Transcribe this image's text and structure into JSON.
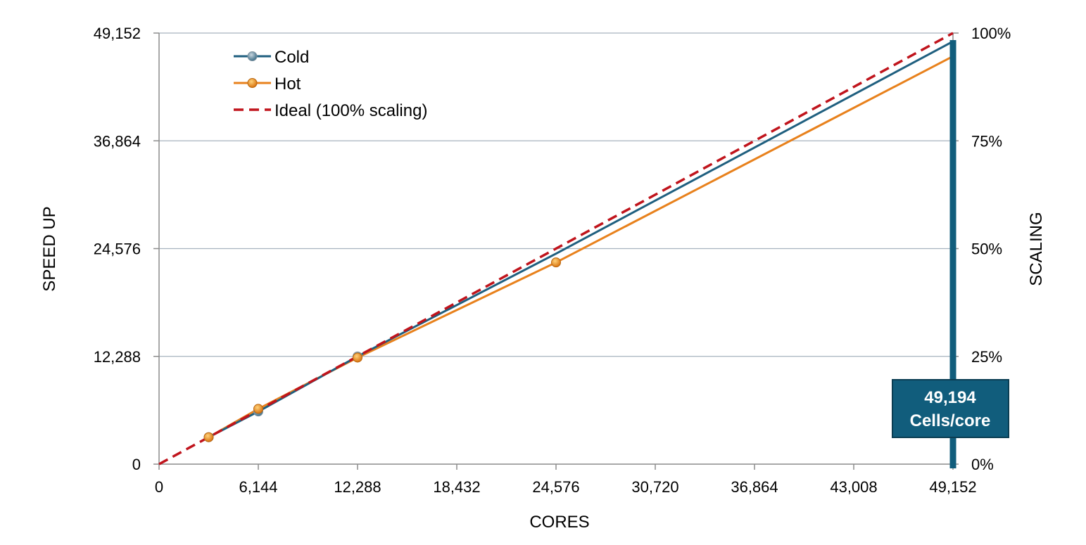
{
  "chart_data": {
    "type": "line",
    "xlabel": "CORES",
    "ylabel": "SPEED UP",
    "y2label": "SCALING",
    "xlim": [
      0,
      49152
    ],
    "ylim": [
      0,
      49152
    ],
    "y2lim": [
      0,
      1
    ],
    "x_ticks": [
      "0",
      "6,144",
      "12,288",
      "18,432",
      "24,576",
      "30,720",
      "36,864",
      "43,008",
      "49,152"
    ],
    "y_ticks": [
      "0",
      "12,288",
      "24,576",
      "36,864",
      "49,152"
    ],
    "y2_ticks": [
      "0%",
      "25%",
      "50%",
      "75%",
      "100%"
    ],
    "grid": "horizontal",
    "legend_position": "top-left",
    "series": [
      {
        "name": "Cold",
        "color": "#1f5f7f",
        "style": "solid",
        "markers": true,
        "points": [
          [
            3072,
            3072
          ],
          [
            6144,
            6000
          ],
          [
            12288,
            12280
          ],
          [
            24576,
            24000
          ],
          [
            49152,
            48200
          ]
        ]
      },
      {
        "name": "Hot",
        "color": "#e8811c",
        "style": "solid",
        "markers": true,
        "points": [
          [
            3072,
            3072
          ],
          [
            6144,
            6300
          ],
          [
            12288,
            12150
          ],
          [
            24576,
            23000
          ],
          [
            49152,
            46500
          ]
        ]
      },
      {
        "name": "Ideal (100% scaling)",
        "color": "#c0141c",
        "style": "dashed",
        "markers": false,
        "points": [
          [
            0,
            0
          ],
          [
            49152,
            49152
          ]
        ]
      }
    ],
    "marked_points": {
      "Cold": [
        0,
        1,
        2
      ],
      "Hot": [
        0,
        1,
        2,
        3
      ]
    },
    "annotation": {
      "lines": [
        "49,194",
        "Cells/core"
      ],
      "color": "#115d7c",
      "x": 49152,
      "y_top": 49152,
      "y_bottom": 0
    }
  }
}
